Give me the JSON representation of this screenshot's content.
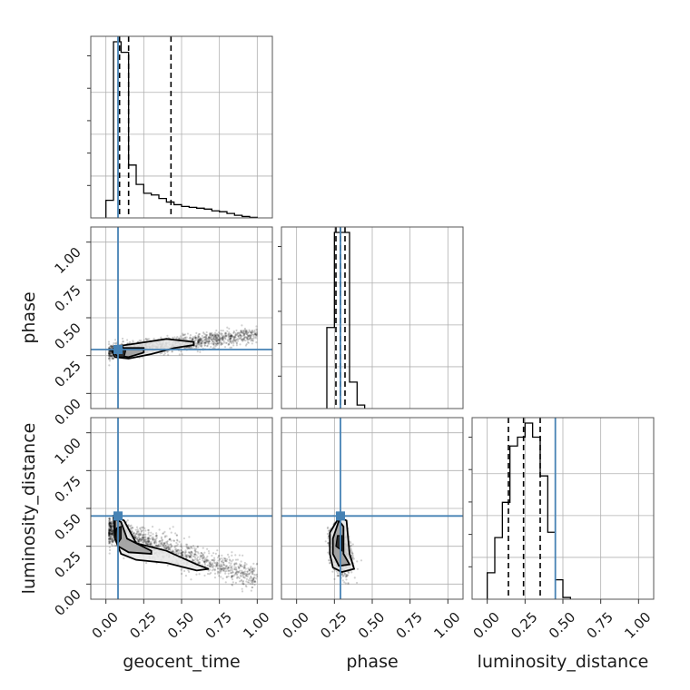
{
  "chart_data": {
    "type": "corner",
    "parameters": [
      "geocent_time",
      "phase",
      "luminosity_distance"
    ],
    "axis_labels": {
      "x": [
        "geocent_time",
        "phase",
        "luminosity_distance"
      ],
      "y": [
        "phase",
        "luminosity_distance"
      ]
    },
    "tick_values": [
      0.0,
      0.25,
      0.5,
      0.75,
      1.0
    ],
    "tick_labels": [
      "0.00",
      "0.25",
      "0.50",
      "0.75",
      "1.00"
    ],
    "range": [
      -0.1,
      1.1
    ],
    "grid": true,
    "truth_color": "#4682b4",
    "truths": {
      "geocent_time": 0.08,
      "phase": 0.29,
      "luminosity_distance": 0.45
    },
    "quantiles": {
      "geocent_time": [
        0.09,
        0.15,
        0.43
      ],
      "phase": [
        0.26,
        0.29,
        0.32
      ],
      "luminosity_distance": [
        0.14,
        0.24,
        0.35
      ]
    },
    "histograms": {
      "geocent_time": {
        "bin_width": 0.05,
        "starts": [
          0.0,
          0.05,
          0.1,
          0.15,
          0.2,
          0.25,
          0.3,
          0.35,
          0.4,
          0.45,
          0.5,
          0.55,
          0.6,
          0.65,
          0.7,
          0.75,
          0.8,
          0.85,
          0.9,
          0.95
        ],
        "heights": [
          0.1,
          1.0,
          0.94,
          0.3,
          0.19,
          0.14,
          0.13,
          0.11,
          0.09,
          0.075,
          0.065,
          0.06,
          0.055,
          0.05,
          0.04,
          0.035,
          0.025,
          0.015,
          0.008,
          0.003
        ]
      },
      "phase": {
        "bin_width": 0.05,
        "starts": [
          0.2,
          0.25,
          0.3,
          0.35,
          0.4
        ],
        "heights": [
          0.46,
          1.0,
          1.0,
          0.15,
          0.02
        ]
      },
      "luminosity_distance": {
        "bin_width": 0.05,
        "starts": [
          0.0,
          0.05,
          0.1,
          0.15,
          0.2,
          0.25,
          0.3,
          0.35,
          0.4,
          0.45,
          0.5
        ],
        "heights": [
          0.15,
          0.35,
          0.55,
          0.87,
          0.92,
          1.0,
          0.92,
          0.7,
          0.38,
          0.11,
          0.01
        ]
      }
    }
  }
}
